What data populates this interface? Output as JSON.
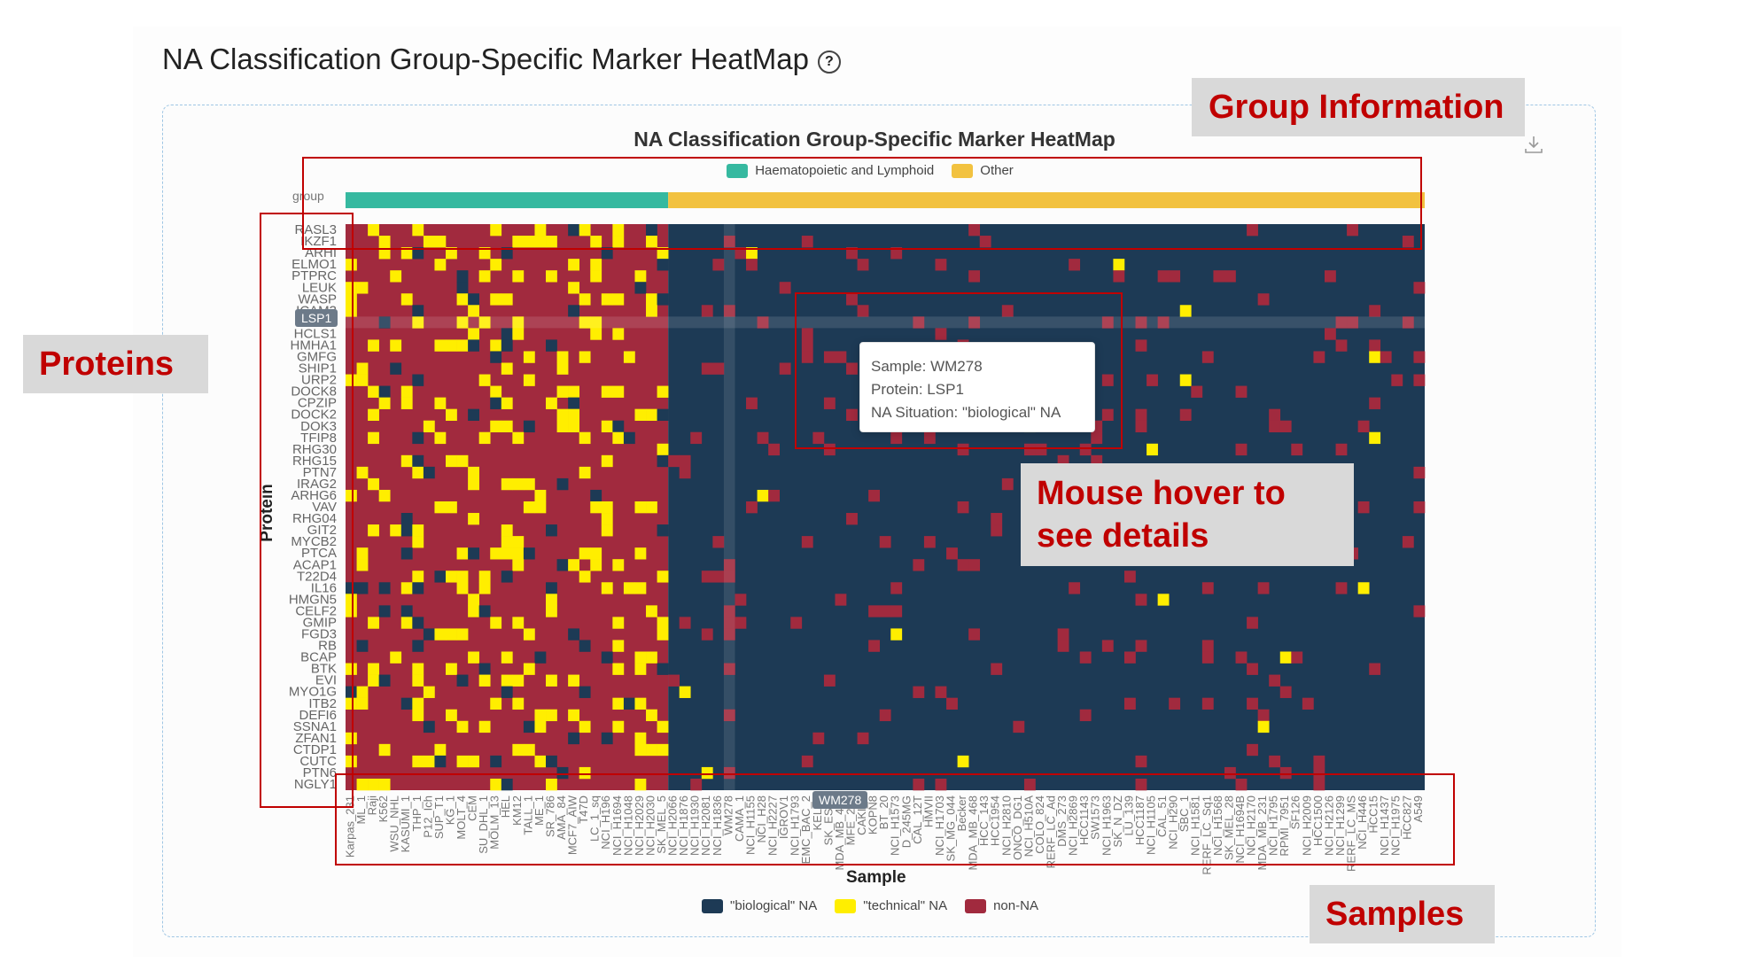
{
  "page": {
    "title": "NA Classification Group-Specific Marker HeatMap"
  },
  "chart_data": {
    "type": "heatmap",
    "title": "NA Classification Group-Specific Marker HeatMap",
    "xlabel": "Sample",
    "ylabel": "Protein",
    "group_label": "group",
    "groups": [
      {
        "name": "Haematopoietic and Lymphoid",
        "color": "#36b9a0",
        "n_samples": 29
      },
      {
        "name": "Other",
        "color": "#f2c240",
        "n_samples": 68
      }
    ],
    "categories_legend": [
      {
        "name": "\"biological\" NA",
        "color": "#1d3a55"
      },
      {
        "name": "\"technical\" NA",
        "color": "#ffee00"
      },
      {
        "name": "non-NA",
        "color": "#a12a3e"
      }
    ],
    "proteins": [
      "RASL3",
      "IKZF1",
      "ARHI",
      "ELMO1",
      "PTPRC",
      "LEUK",
      "WASP",
      "ICAM3",
      "LSP1",
      "HCLS1",
      "HMHA1",
      "GMFG",
      "SHIP1",
      "URP2",
      "DOCK8",
      "CPZIP",
      "DOCK2",
      "DOK3",
      "TFIP8",
      "RHG30",
      "RHG15",
      "PTN7",
      "IRAG2",
      "ARHG6",
      "VAV",
      "RHG04",
      "GIT2",
      "MYCB2",
      "PTCA",
      "ACAP1",
      "T22D4",
      "IL16",
      "HMGN5",
      "CELF2",
      "GMIP",
      "FGD3",
      "RB",
      "BCAP",
      "BTK",
      "EVI",
      "MYO1G",
      "ITB2",
      "DEFI6",
      "SSNA1",
      "ZFAN1",
      "CTDP1",
      "CUTC",
      "PTN6",
      "NGLY1"
    ],
    "samples": [
      "Karpas_231",
      "ML_1",
      "Raji",
      "K562",
      "WSU_NHL",
      "KASUMI_1",
      "THP_1",
      "P12_Ich",
      "SUP_T1",
      "KG_1",
      "MOLT_4",
      "CEM",
      "SU_DHL_1",
      "MOLM_13",
      "HEL",
      "KM12",
      "TALL_1",
      "ME_1",
      "SR_786",
      "AMA_84",
      "MCF7_AIW",
      "T47D",
      "LC_1_sq",
      "NCI_H196",
      "NCI_H1694",
      "NCI_H1048",
      "NCI_H2029",
      "NCI_H2030",
      "SK_MEL_5",
      "NCI_H2066",
      "NCI_H1876",
      "NCI_H1930",
      "NCI_H2081",
      "NCI_H1836",
      "WM278",
      "CAMA_1",
      "NCI_H1155",
      "NCI_H28",
      "NCI_H2227",
      "IGROV1",
      "NCI_H1793",
      "EMC_BAC_2",
      "KELLY",
      "SK_ES_1",
      "MDA_MB_453",
      "MFE_280",
      "CAKI_1",
      "KOPN8",
      "BT_20",
      "NCI_H1573",
      "D_245MG",
      "CAL_12T",
      "HMVII",
      "NCI_H1703",
      "SK_MG_044",
      "Becker",
      "MDA_MB_468",
      "HCC_143",
      "HCC1954",
      "NCI_H2810",
      "ONCO_DG1",
      "NCI_H510A",
      "COLO_824",
      "RERF_LC_Ad",
      "DMS_273",
      "NCI_H2869",
      "HCC1143",
      "SW1573",
      "NCI_H1963",
      "SK_N_DZ",
      "LU_139",
      "HCC1187",
      "NCI_H1105",
      "CAL_51",
      "NCI_H290",
      "SBC_1",
      "NCI_H1581",
      "RERF_LC_Sq1",
      "NCI_H1568",
      "SK_MEL_28",
      "NCI_H1694B",
      "NCI_H2170",
      "MDA_MB_231",
      "NCI_H1795",
      "RPMI_7951",
      "SF126",
      "NCI_H2009",
      "HCC1500",
      "NCI_H2126",
      "NCI_H1299",
      "RERF_LC_MS",
      "NCI_H446",
      "HCC15",
      "NCI_H1437",
      "NCI_H1975",
      "HCC827",
      "A549"
    ],
    "n_samples": 97,
    "highlight": {
      "protein": "LSP1",
      "sample": "WM278"
    }
  },
  "tooltip": {
    "sample": "Sample: WM278",
    "protein": "Protein: LSP1",
    "situation": "NA Situation: \"biological\" NA"
  },
  "pills": {
    "protein": "LSP1",
    "sample": "WM278"
  },
  "annotations": {
    "group_info": "Group Information",
    "proteins": "Proteins",
    "mouse_hover_1": "Mouse hover to",
    "mouse_hover_2": "see details",
    "samples": "Samples"
  },
  "colors": {
    "biological_na": "#1d3a55",
    "technical_na": "#ffee00",
    "non_na": "#a12a3e",
    "annotation_red": "#c00000"
  }
}
